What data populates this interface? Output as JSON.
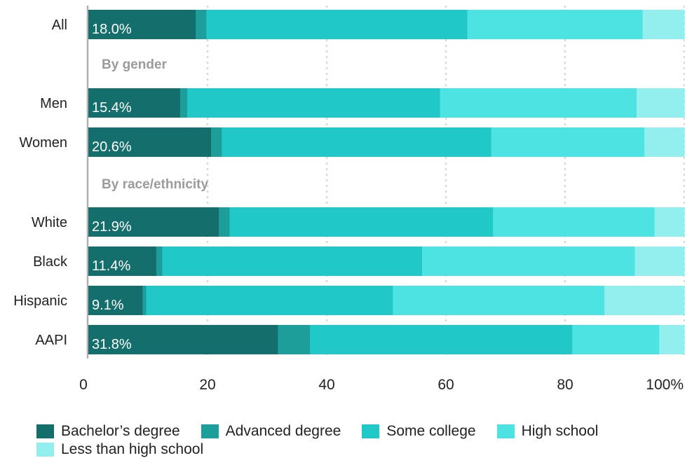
{
  "chart_data": {
    "type": "bar",
    "orientation": "horizontal",
    "stacked": true,
    "categories": [
      "All",
      "Men",
      "Women",
      "White",
      "Black",
      "Hispanic",
      "AAPI"
    ],
    "groups": [
      {
        "label": "",
        "categories": [
          "All"
        ]
      },
      {
        "label": "By gender",
        "categories": [
          "Men",
          "Women"
        ]
      },
      {
        "label": "By race/ethnicity",
        "categories": [
          "White",
          "Black",
          "Hispanic",
          "AAPI"
        ]
      }
    ],
    "series": [
      {
        "name": "Bachelor’s degree",
        "color": "#146e6b",
        "values": [
          18.0,
          15.4,
          20.6,
          21.9,
          11.4,
          9.1,
          31.8
        ]
      },
      {
        "name": "Advanced degree",
        "color": "#1d9e9a",
        "values": [
          1.8,
          1.2,
          1.8,
          1.8,
          1.0,
          0.6,
          5.4
        ]
      },
      {
        "name": "Some college",
        "color": "#20c9c8",
        "values": [
          43.8,
          42.4,
          45.2,
          44.2,
          43.6,
          41.4,
          44.0
        ]
      },
      {
        "name": "High school",
        "color": "#4ee3e3",
        "values": [
          29.4,
          33.0,
          25.7,
          27.1,
          35.7,
          35.5,
          14.6
        ]
      },
      {
        "name": "Less than high school",
        "color": "#93efed",
        "values": [
          7.0,
          8.0,
          6.7,
          5.0,
          8.3,
          13.4,
          4.2
        ]
      }
    ],
    "data_labels": [
      "18.0%",
      "15.4%",
      "20.6%",
      "21.9%",
      "11.4%",
      "9.1%",
      "31.8%"
    ],
    "x_ticks": [
      "0",
      "20",
      "40",
      "60",
      "80",
      "100%"
    ],
    "xlim": [
      0,
      100
    ],
    "grid": true,
    "legend_position": "bottom",
    "title": "",
    "xlabel": "",
    "ylabel": ""
  }
}
